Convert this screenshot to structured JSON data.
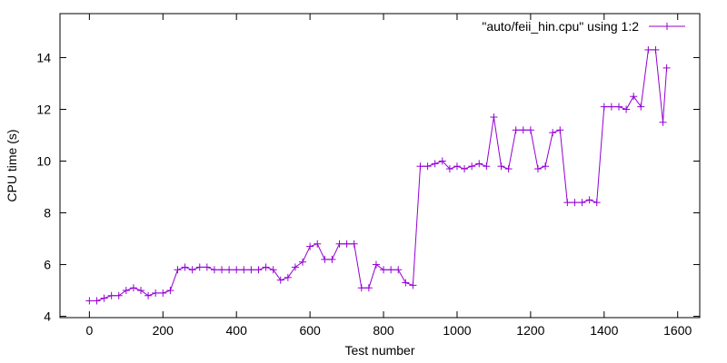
{
  "chart_data": {
    "type": "line",
    "xlabel": "Test number",
    "ylabel": "CPU time (s)",
    "xlim": [
      -80,
      1660
    ],
    "ylim": [
      3.95,
      15.7
    ],
    "xticks": [
      0,
      200,
      400,
      600,
      800,
      1000,
      1200,
      1400,
      1600
    ],
    "yticks": [
      4,
      6,
      8,
      10,
      12,
      14
    ],
    "xtick_labels": [
      "0",
      "200",
      "400",
      "600",
      "800",
      "1000",
      "1200",
      "1400",
      "1600"
    ],
    "ytick_labels": [
      "4",
      "6",
      "8",
      "10",
      "12",
      "14"
    ],
    "grid": false,
    "legend_position": "top-right",
    "series": [
      {
        "name": "\"auto/feii_hin.cpu\" using 1:2",
        "color": "#9400d3",
        "marker": "plus",
        "x": [
          0,
          20,
          40,
          60,
          80,
          100,
          120,
          140,
          160,
          180,
          200,
          220,
          240,
          260,
          280,
          300,
          320,
          340,
          360,
          380,
          400,
          420,
          440,
          460,
          480,
          500,
          520,
          540,
          560,
          580,
          600,
          620,
          640,
          660,
          680,
          700,
          720,
          740,
          760,
          780,
          800,
          820,
          840,
          860,
          880,
          900,
          920,
          940,
          960,
          980,
          1000,
          1020,
          1040,
          1060,
          1080,
          1100,
          1120,
          1140,
          1160,
          1180,
          1200,
          1220,
          1240,
          1260,
          1280,
          1300,
          1320,
          1340,
          1360,
          1380,
          1400,
          1420,
          1440,
          1460,
          1480,
          1500,
          1520,
          1540,
          1560,
          1570
        ],
        "y": [
          4.6,
          4.6,
          4.7,
          4.8,
          4.8,
          5.0,
          5.1,
          5.0,
          4.8,
          4.9,
          4.9,
          5.0,
          5.8,
          5.9,
          5.8,
          5.9,
          5.9,
          5.8,
          5.8,
          5.8,
          5.8,
          5.8,
          5.8,
          5.8,
          5.9,
          5.8,
          5.4,
          5.5,
          5.9,
          6.1,
          6.7,
          6.8,
          6.2,
          6.2,
          6.8,
          6.8,
          6.8,
          5.1,
          5.1,
          6.0,
          5.8,
          5.8,
          5.8,
          5.3,
          5.2,
          9.8,
          9.8,
          9.9,
          10.0,
          9.7,
          9.8,
          9.7,
          9.8,
          9.9,
          9.8,
          11.7,
          9.8,
          9.7,
          11.2,
          11.2,
          11.2,
          9.7,
          9.8,
          11.1,
          11.2,
          8.4,
          8.4,
          8.4,
          8.5,
          8.4,
          12.1,
          12.1,
          12.1,
          12.0,
          12.5,
          12.1,
          14.3,
          14.3,
          11.5,
          13.6
        ]
      }
    ]
  }
}
